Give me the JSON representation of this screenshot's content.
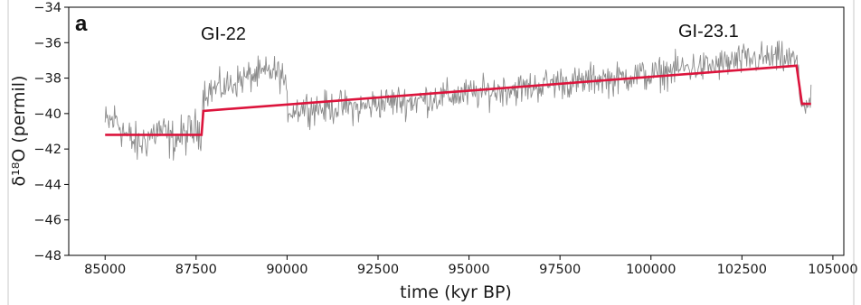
{
  "chart_data": {
    "type": "line",
    "panel_label": "a",
    "xlabel": "time (kyr BP)",
    "ylabel": "δ¹⁸O (permil)",
    "xlim": [
      84000,
      105300
    ],
    "ylim": [
      -48,
      -34
    ],
    "xticks": [
      85000,
      87500,
      90000,
      92500,
      95000,
      97500,
      100000,
      102500,
      105000
    ],
    "yticks": [
      -34,
      -36,
      -38,
      -40,
      -42,
      -44,
      -46,
      -48
    ],
    "xtick_labels": [
      "85000",
      "87500",
      "90000",
      "92500",
      "95000",
      "97500",
      "100000",
      "102500",
      "105000"
    ],
    "ytick_labels": [
      "−34",
      "−36",
      "−38",
      "−40",
      "−42",
      "−44",
      "−46",
      "−48"
    ],
    "grid": false,
    "annotations": [
      {
        "text": "GI-22",
        "x": 88600,
        "y": -34.8
      },
      {
        "text": "GI-23.1",
        "x": 102200,
        "y": -34.7
      }
    ],
    "series": [
      {
        "color": "#8c8c8c",
        "style": "noisy-record",
        "x": [
          85000,
          85300,
          85600,
          85900,
          86200,
          86500,
          86800,
          87100,
          87400,
          87650,
          87700,
          88000,
          88300,
          88700,
          89000,
          89300,
          89600,
          89900,
          90000,
          90100,
          90500,
          91000,
          91500,
          92000,
          92500,
          93000,
          93500,
          94000,
          94500,
          95000,
          95500,
          96000,
          96500,
          97000,
          97500,
          98000,
          98500,
          99000,
          99500,
          100000,
          100500,
          101000,
          101500,
          102000,
          102500,
          103000,
          103500,
          104000,
          104100,
          104200,
          104400
        ],
        "y": [
          -40.6,
          -40.3,
          -41.3,
          -41.8,
          -41.3,
          -40.9,
          -41.5,
          -41.3,
          -41.0,
          -40.8,
          -38.8,
          -38.6,
          -38.5,
          -38.1,
          -37.9,
          -37.8,
          -37.6,
          -37.9,
          -39.5,
          -39.8,
          -39.6,
          -39.7,
          -39.6,
          -39.7,
          -39.4,
          -39.3,
          -39.3,
          -39.1,
          -39.0,
          -38.9,
          -38.8,
          -38.6,
          -38.6,
          -38.4,
          -38.2,
          -38.3,
          -38.0,
          -38.1,
          -37.8,
          -37.9,
          -37.6,
          -37.4,
          -37.4,
          -37.2,
          -37.0,
          -36.9,
          -36.9,
          -37.0,
          -39.2,
          -39.4,
          -39.5
        ]
      },
      {
        "color": "#dc143c",
        "style": "piecewise-linear-fit",
        "x": [
          85000,
          87650,
          87700,
          104000,
          104150,
          104400
        ],
        "y": [
          -41.2,
          -41.2,
          -39.85,
          -37.3,
          -39.45,
          -39.45
        ]
      }
    ]
  }
}
